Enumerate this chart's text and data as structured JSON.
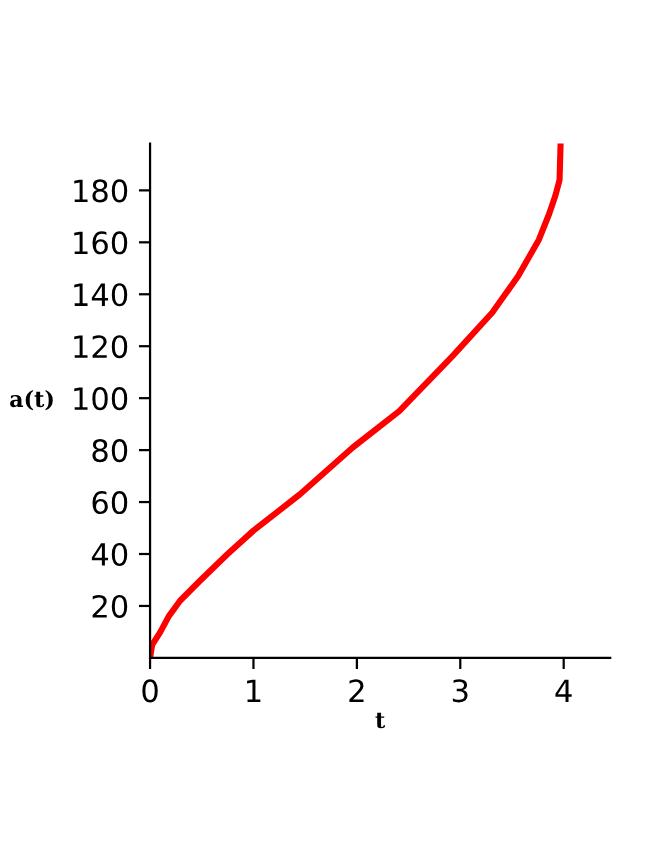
{
  "chart_data": {
    "type": "line",
    "xlabel": "t",
    "ylabel": "a(t)",
    "x": [
      0,
      0.02,
      0.1,
      0.18,
      0.29,
      0.49,
      0.75,
      1,
      1.45,
      1.96,
      2.41,
      2.92,
      3.31,
      3.56,
      3.76,
      3.86,
      3.92,
      3.96,
      3.97
    ],
    "series": [
      {
        "color": "#ff0000",
        "values": [
          0,
          5,
          10,
          16,
          22,
          30,
          40,
          49,
          63,
          81,
          95,
          116,
          133,
          147,
          161,
          171,
          178,
          184,
          198
        ]
      }
    ],
    "xlim": [
      0,
      4.45
    ],
    "ylim": [
      0,
      198
    ],
    "xticks": [
      0,
      1,
      2,
      3,
      4
    ],
    "yticks": [
      20,
      40,
      60,
      80,
      100,
      120,
      140,
      160,
      180
    ],
    "grid": false,
    "marker": "none",
    "line_style": "solid"
  }
}
